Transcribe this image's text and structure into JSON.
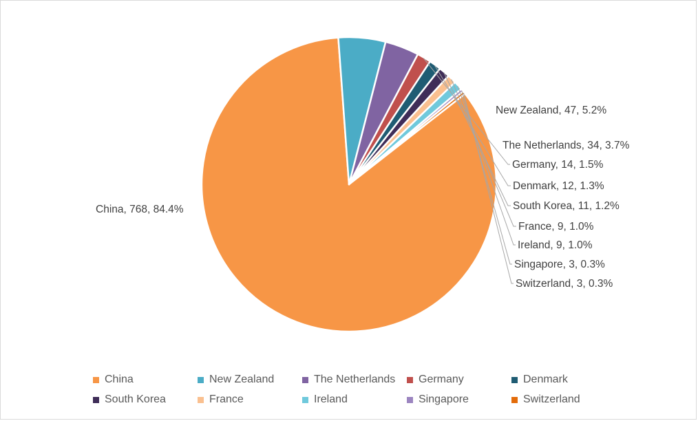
{
  "chart_data": {
    "type": "pie",
    "title": "",
    "categories": [
      "China",
      "New Zealand",
      "The Netherlands",
      "Germany",
      "Denmark",
      "South Korea",
      "France",
      "Ireland",
      "Singapore",
      "Switzerland"
    ],
    "values": [
      768,
      47,
      34,
      14,
      12,
      11,
      9,
      9,
      3,
      3
    ],
    "percentages": [
      "84.4%",
      "5.2%",
      "3.7%",
      "1.5%",
      "1.3%",
      "1.2%",
      "1.0%",
      "1.0%",
      "0.3%",
      "0.3%"
    ],
    "data_labels": [
      "China, 768, 84.4%",
      "New Zealand, 47, 5.2%",
      "The Netherlands, 34, 3.7%",
      "Germany, 14, 1.5%",
      "Denmark, 12, 1.3%",
      "South Korea, 11, 1.2%",
      "France, 9, 1.0%",
      "Ireland, 9, 1.0%",
      "Singapore, 3, 0.3%",
      "Switzerland, 3, 0.3%"
    ],
    "colors": [
      "#F79646",
      "#4BACC6",
      "#8064A2",
      "#C0504D",
      "#1F5C73",
      "#3F2D58",
      "#FAC090",
      "#70C9DC",
      "#9C85C0",
      "#E36C0A"
    ],
    "legend_position": "bottom"
  }
}
